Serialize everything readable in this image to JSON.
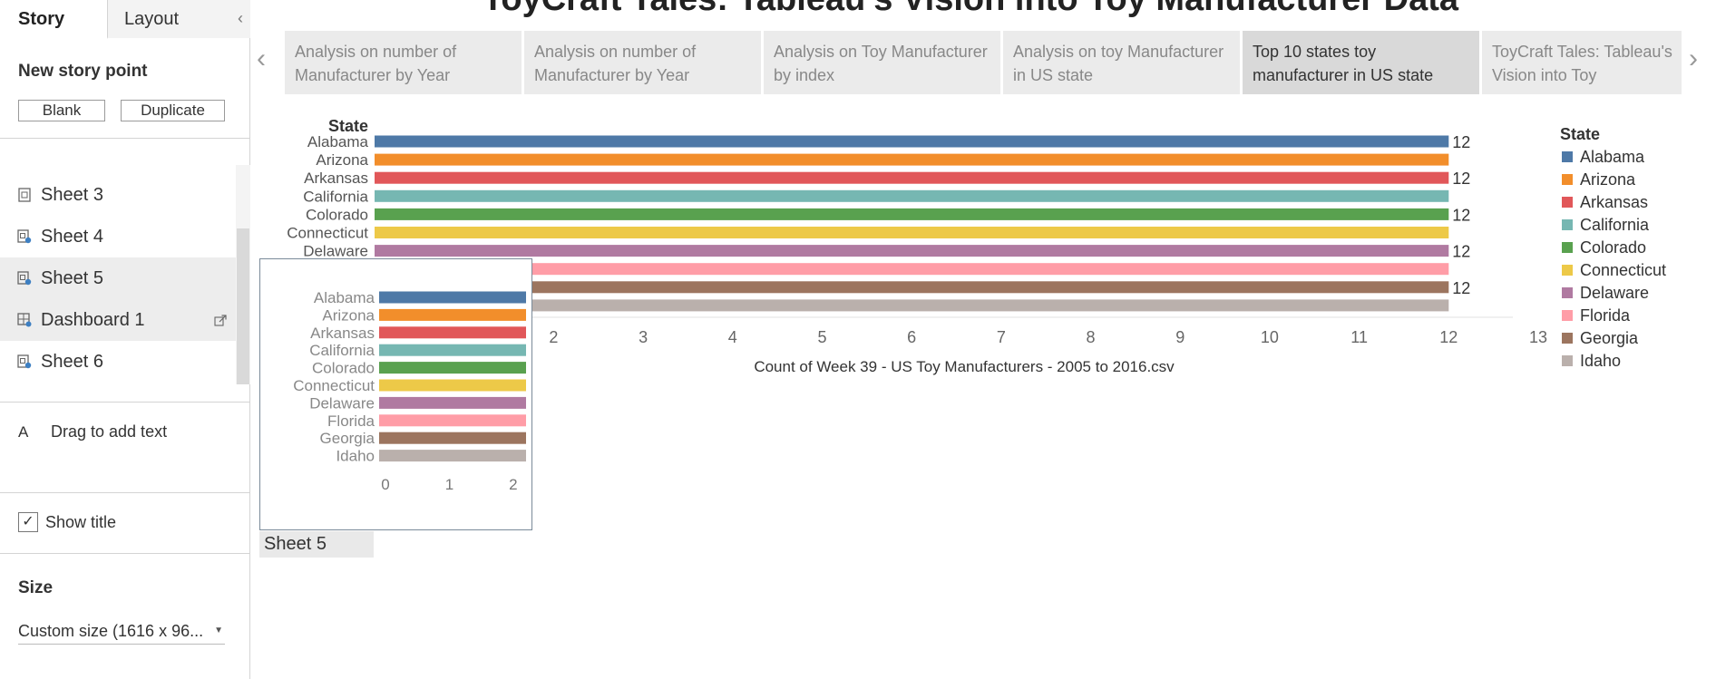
{
  "left_panel": {
    "tabs": {
      "story": "Story",
      "layout": "Layout",
      "collapse": "‹"
    },
    "new_story_point": "New story point",
    "buttons": {
      "blank": "Blank",
      "duplicate": "Duplicate"
    },
    "sheets": [
      {
        "label": "Sheet 3",
        "icon": "sheet-icon"
      },
      {
        "label": "Sheet 4",
        "icon": "sheet-icon"
      },
      {
        "label": "Sheet 5",
        "icon": "sheet-icon"
      },
      {
        "label": "Dashboard 1",
        "icon": "dashboard-icon"
      },
      {
        "label": "Sheet 6",
        "icon": "sheet-icon"
      }
    ],
    "drag_text": "Drag to add text",
    "drag_text_icon": "A",
    "show_title": {
      "label": "Show title",
      "checked": true
    },
    "size": {
      "title": "Size",
      "value": "Custom size (1616 x 96..."
    }
  },
  "story": {
    "title": "ToyCraft Tales: Tableau's Vision into Toy Manufacturer Data",
    "story_points": [
      "Analysis on number of Manufacturer by Year",
      "Analysis on number of Manufacturer by Year",
      "Analysis on Toy Manufacturer by index",
      "Analysis on toy Manufacturer in US state",
      "Top 10 states toy manufacturer in US state",
      "ToyCraft Tales: Tableau's Vision into Toy"
    ],
    "active_story_point": 4
  },
  "chart_data": [
    {
      "type": "bar",
      "orientation": "horizontal",
      "row_header": "State",
      "categories": [
        "Alabama",
        "Arizona",
        "Arkansas",
        "California",
        "Colorado",
        "Connecticut",
        "Delaware",
        "Florida",
        "Georgia",
        "Idaho"
      ],
      "values": [
        12,
        12,
        12,
        12,
        12,
        12,
        12,
        12,
        12,
        12
      ],
      "data_labels": [
        "12",
        "",
        "12",
        "",
        "12",
        "",
        "12",
        "",
        "12",
        ""
      ],
      "colors": [
        "#4e79a7",
        "#f28e2b",
        "#e15759",
        "#76b7b2",
        "#59a14f",
        "#edc948",
        "#b07aa1",
        "#ff9da7",
        "#9c755f",
        "#bab0ac"
      ],
      "xlabel": "Count of Week 39 - US Toy Manufacturers - 2005 to 2016.csv",
      "xlim": [
        0,
        13
      ],
      "x_ticks": [
        2,
        3,
        4,
        5,
        6,
        7,
        8,
        9,
        10,
        11,
        12,
        13
      ],
      "legend": {
        "title": "State",
        "placement": "right",
        "items": [
          "Alabama",
          "Arizona",
          "Arkansas",
          "California",
          "Colorado",
          "Connecticut",
          "Delaware",
          "Florida",
          "Georgia",
          "Idaho"
        ]
      }
    },
    {
      "type": "bar",
      "orientation": "horizontal",
      "categories": [
        "Alabama",
        "Arizona",
        "Arkansas",
        "California",
        "Colorado",
        "Connecticut",
        "Delaware",
        "Florida",
        "Georgia",
        "Idaho"
      ],
      "values": [
        2.3,
        2.3,
        2.3,
        2.3,
        2.3,
        2.3,
        2.3,
        2.3,
        2.3,
        2.3
      ],
      "colors": [
        "#4e79a7",
        "#f28e2b",
        "#e15759",
        "#76b7b2",
        "#59a14f",
        "#edc948",
        "#b07aa1",
        "#ff9da7",
        "#9c755f",
        "#bab0ac"
      ],
      "xlim": [
        0,
        2.3
      ],
      "x_ticks": [
        0,
        1,
        2
      ],
      "caption": "Sheet 5"
    }
  ]
}
